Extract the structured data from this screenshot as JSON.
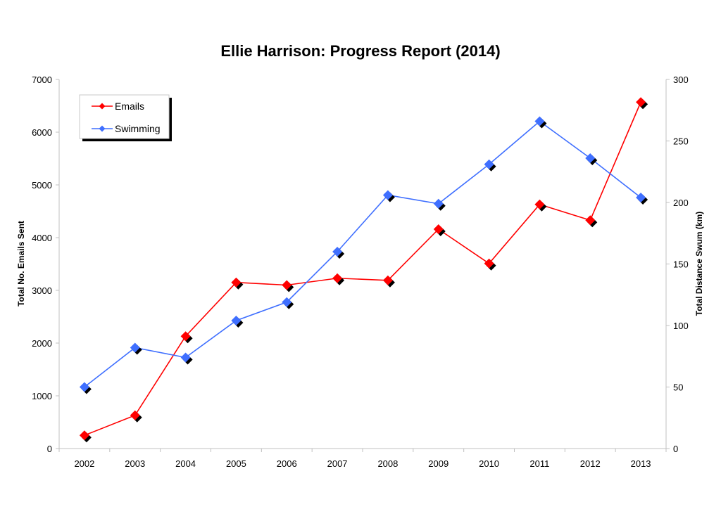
{
  "chart_data": {
    "type": "line",
    "title": "Ellie Harrison: Progress Report (2014)",
    "categories": [
      "2002",
      "2003",
      "2004",
      "2005",
      "2006",
      "2007",
      "2008",
      "2009",
      "2010",
      "2011",
      "2012",
      "2013"
    ],
    "ylabel": "Total No. Emails Sent",
    "y2label": "Total Distance Swum (km)",
    "ylim": [
      0,
      7000
    ],
    "yticks": [
      0,
      1000,
      2000,
      3000,
      4000,
      5000,
      6000,
      7000
    ],
    "y2lim": [
      0,
      300
    ],
    "y2ticks": [
      0,
      50,
      100,
      150,
      200,
      250,
      300
    ],
    "grid": false,
    "legend_placement": "top-left",
    "series": [
      {
        "name": "Emails",
        "axis": "left",
        "color": "#ff0000",
        "values": [
          250,
          630,
          2130,
          3150,
          3100,
          3230,
          3190,
          4160,
          3510,
          4630,
          4330,
          6570
        ]
      },
      {
        "name": "Swimming",
        "axis": "right",
        "color": "#3f6fff",
        "values": [
          50,
          82,
          74,
          104,
          119,
          160,
          206,
          199,
          231,
          266,
          236,
          204
        ]
      }
    ]
  }
}
